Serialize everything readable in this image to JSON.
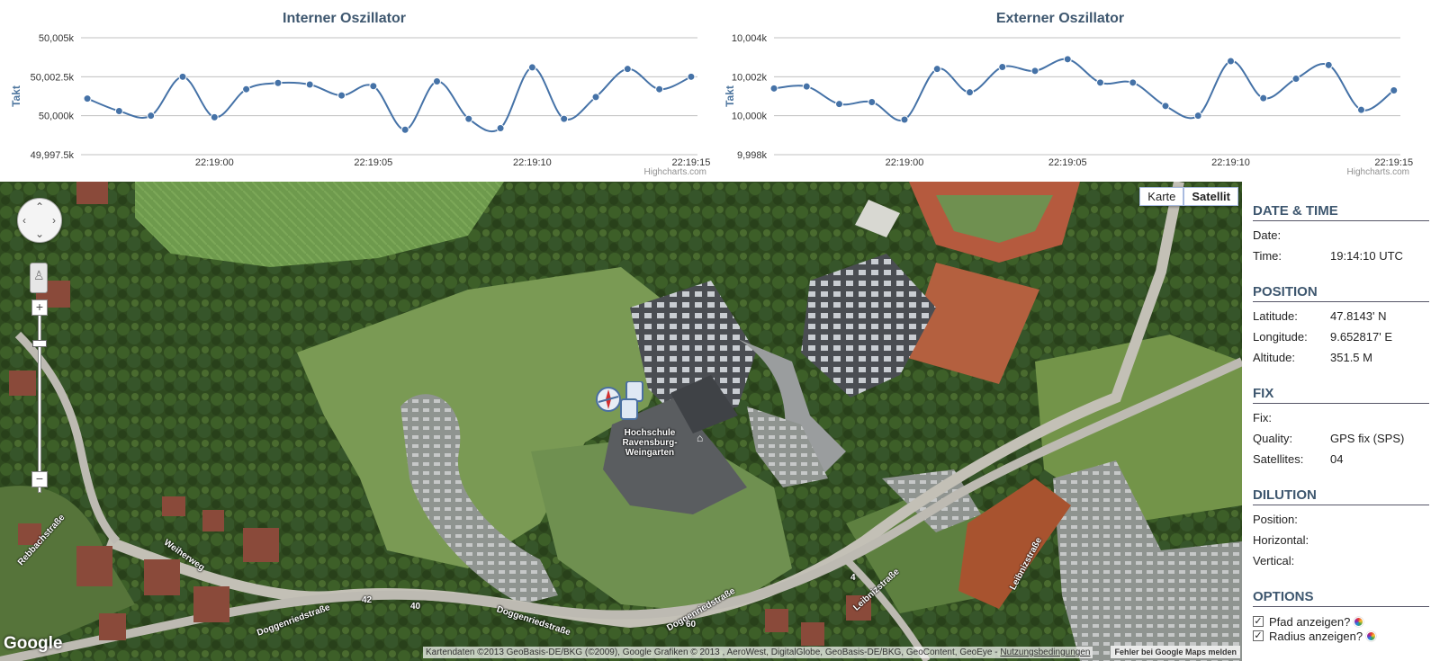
{
  "chart_data": [
    {
      "type": "line",
      "title": "Interner Oszillator",
      "ylabel": "Takt",
      "y_ticks": [
        "50,005k",
        "50,002.5k",
        "50,000k",
        "49,997.5k"
      ],
      "ylim": [
        49997.5,
        50005
      ],
      "x_ticks": [
        "22:19:00",
        "22:19:05",
        "22:19:10",
        "22:19:15"
      ],
      "x_tick_seconds": [
        0,
        5,
        10,
        15
      ],
      "x_range": [
        -4.2,
        15.2
      ],
      "credit": "Highcharts.com",
      "color": "#4572a7",
      "series": [
        {
          "x": [
            -4,
            -3,
            -2,
            -1,
            0,
            1,
            2,
            3,
            4,
            5,
            6,
            7,
            8,
            9,
            10,
            11,
            12,
            13,
            14,
            15
          ],
          "values": [
            50001.1,
            50000.3,
            50000.0,
            50002.5,
            49999.9,
            50001.7,
            50002.1,
            50002.0,
            50001.3,
            50001.9,
            49999.1,
            50002.2,
            49999.8,
            49999.2,
            50003.1,
            49999.8,
            50001.2,
            50003.0,
            50001.7,
            50002.5
          ]
        }
      ]
    },
    {
      "type": "line",
      "title": "Externer Oszillator",
      "ylabel": "Takt",
      "y_ticks": [
        "10,004k",
        "10,002k",
        "10,000k",
        "9,998k"
      ],
      "ylim": [
        9998,
        10004
      ],
      "x_ticks": [
        "22:19:00",
        "22:19:05",
        "22:19:10",
        "22:19:15"
      ],
      "x_tick_seconds": [
        0,
        5,
        10,
        15
      ],
      "x_range": [
        -4.0,
        15.2
      ],
      "credit": "Highcharts.com",
      "color": "#4572a7",
      "series": [
        {
          "x": [
            -4,
            -3,
            -2,
            -1,
            0,
            1,
            2,
            3,
            4,
            5,
            6,
            7,
            8,
            9,
            10,
            11,
            12,
            13,
            14,
            15
          ],
          "values": [
            10001.4,
            10001.5,
            10000.6,
            10000.7,
            9999.8,
            10002.4,
            10001.2,
            10002.5,
            10002.3,
            10002.9,
            10001.7,
            10001.7,
            10000.5,
            10000.0,
            10002.8,
            10000.9,
            10001.9,
            10002.6,
            10000.3,
            10001.3
          ]
        }
      ]
    }
  ],
  "map": {
    "type_buttons": [
      "Karte",
      "Satellit"
    ],
    "active_type": "Satellit",
    "poi_label": "Hochschule Ravensburg-Weingarten",
    "streets": [
      "Rebbachstraße",
      "Weiherweg",
      "Doggenriedstraße",
      "Doggenriedstraße",
      "Doggenriedstraße",
      "Leibnizstraße",
      "Leibnizstraße"
    ],
    "road_numbers": [
      "42",
      "40",
      "60",
      "4"
    ],
    "logo": "Google",
    "attribution": "Kartendaten ©2013 GeoBasis-DE/BKG (©2009), Google Grafiken © 2013 , AeroWest, DigitalGlobe, GeoBasis-DE/BKG, GeoContent, GeoEye - ",
    "terms": "Nutzungsbedingungen",
    "report": "Fehler bei Google Maps melden",
    "zoom_in": "+",
    "zoom_out": "−"
  },
  "panel": {
    "datetime": {
      "heading": "DATE & TIME",
      "date_label": "Date:",
      "date_value": "",
      "time_label": "Time:",
      "time_value": "19:14:10 UTC"
    },
    "position": {
      "heading": "POSITION",
      "lat_label": "Latitude:",
      "lat_value": "47.8143' N",
      "lon_label": "Longitude:",
      "lon_value": "9.652817' E",
      "alt_label": "Altitude:",
      "alt_value": "351.5 M"
    },
    "fix": {
      "heading": "FIX",
      "fix_label": "Fix:",
      "fix_value": "",
      "quality_label": "Quality:",
      "quality_value": "GPS fix (SPS)",
      "sat_label": "Satellites:",
      "sat_value": "04"
    },
    "dilution": {
      "heading": "DILUTION",
      "pos_label": "Position:",
      "pos_value": "",
      "hor_label": "Horizontal:",
      "hor_value": "",
      "ver_label": "Vertical:",
      "ver_value": ""
    },
    "options": {
      "heading": "OPTIONS",
      "path_label": "Pfad anzeigen?",
      "radius_label": "Radius anzeigen?",
      "check": "✓"
    }
  }
}
